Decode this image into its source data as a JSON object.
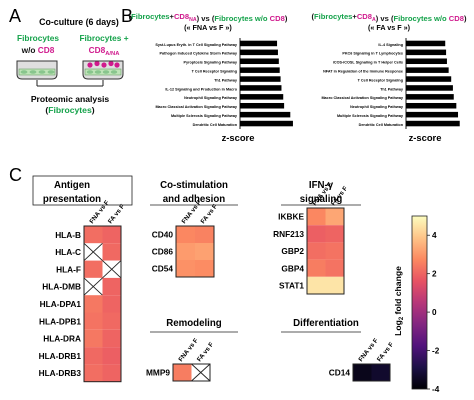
{
  "panels": {
    "a": {
      "label": "A",
      "title": "Co-culture (6 days)",
      "left_line1": "Fibrocytes",
      "left_line2_prefix": "w/o ",
      "left_line2_accent": "CD8",
      "right_line1": "Fibrocytes +",
      "right_line2_main": "CD8",
      "right_line2_sub": "A/NA",
      "analysis_line1": "Proteomic analysis",
      "analysis_line2_prefix": "(",
      "analysis_line2_accent": "Fibrocytes",
      "analysis_line2_suffix": ")"
    },
    "b": {
      "label": "B"
    },
    "c": {
      "label": "C"
    }
  },
  "colors": {
    "green": "#14a24a",
    "magenta": "#d01a8d",
    "bar": "#000000",
    "na": "#ffffff",
    "grid": "#222222",
    "pink_cell": "#f7c2dd",
    "green_dish": "#bfe4b8"
  },
  "chart_data": [
    {
      "type": "bar",
      "orientation": "horizontal",
      "title_parts": [
        {
          "text": "(",
          "color": "#111111"
        },
        {
          "text": "Fibrocytes",
          "color": "#14a24a"
        },
        {
          "text": "+",
          "color": "#111111"
        },
        {
          "text": "CD8",
          "color": "#d01a8d"
        },
        {
          "text": "NA",
          "color": "#d01a8d",
          "sub": true
        },
        {
          "text": ") vs (",
          "color": "#111111"
        },
        {
          "text": "Fibrocytes w/o ",
          "color": "#14a24a"
        },
        {
          "text": "CD8",
          "color": "#d01a8d"
        },
        {
          "text": ")",
          "color": "#111111"
        }
      ],
      "subtitle": "(« FNA vs F »)",
      "xlabel": "z-score",
      "xlim": [
        0,
        3.4
      ],
      "categories": [
        "Syst.Lupus Eryth. in T Cell Signaling Pathway",
        "Pathogen Induced Cytokine Storm Pathway",
        "Pyroptosis Signaling Pathway",
        "T Cell Receptor Signaling",
        "Th1 Pathway",
        "IL-12 Signaling and Production in Macro",
        "Neutrophil Signaling Pathway",
        "Macro Classical Activation Signaling Pathway",
        "Multiple Sclerosis Signaling Pathway",
        "Dendritic Cell Maturation"
      ],
      "values": [
        2.1,
        2.15,
        2.2,
        2.25,
        2.3,
        2.35,
        2.45,
        2.5,
        2.85,
        3.0
      ]
    },
    {
      "type": "bar",
      "orientation": "horizontal",
      "title_parts": [
        {
          "text": "(",
          "color": "#111111"
        },
        {
          "text": "Fibrocytes",
          "color": "#14a24a"
        },
        {
          "text": "+",
          "color": "#111111"
        },
        {
          "text": "CD8",
          "color": "#d01a8d"
        },
        {
          "text": "A",
          "color": "#d01a8d",
          "sub": true
        },
        {
          "text": ") vs (",
          "color": "#111111"
        },
        {
          "text": "Fibrocytes w/o ",
          "color": "#14a24a"
        },
        {
          "text": "CD8",
          "color": "#d01a8d"
        },
        {
          "text": ")",
          "color": "#111111"
        }
      ],
      "subtitle": "(« FA vs F »)",
      "xlabel": "z-score",
      "xlim": [
        0,
        3.4
      ],
      "categories": [
        "IL-4 Signaling",
        "PKCθ Signaling in T Lymphocytes",
        "iCOS-iCOSL Signaling in T Helper Cells",
        "NFAT in Regulation of the Immune Response",
        "T Cell Receptor Signaling",
        "Th1 Pathway",
        "Macro Classical Activation Signaling Pathway",
        "Neutrophil Signaling Pathway",
        "Multiple Sclerosis Signaling Pathway",
        "Dendritic Cell Maturation"
      ],
      "values": [
        2.3,
        2.35,
        2.4,
        2.5,
        2.65,
        2.75,
        2.8,
        2.95,
        3.05,
        3.15
      ]
    },
    {
      "type": "heatmap",
      "columns": [
        "FNA vs F",
        "FA vs F"
      ],
      "colorbar": {
        "label": "Log",
        "label_sub": "2",
        "label_rest": " fold change",
        "range": [
          -4,
          5
        ],
        "ticks": [
          4,
          2,
          0,
          -2,
          -4
        ],
        "stops": [
          {
            "v": -4,
            "color": "#000004"
          },
          {
            "v": -2.875,
            "color": "#1c1046"
          },
          {
            "v": -1.75,
            "color": "#51127c"
          },
          {
            "v": -0.625,
            "color": "#832681"
          },
          {
            "v": 0.5,
            "color": "#b73779"
          },
          {
            "v": 1.625,
            "color": "#e75263"
          },
          {
            "v": 2.75,
            "color": "#fc8961"
          },
          {
            "v": 3.875,
            "color": "#fec488"
          },
          {
            "v": 5,
            "color": "#fcfdbf"
          }
        ]
      },
      "groups": [
        {
          "id": "antigen",
          "title_lines": [
            "Antigen",
            "presentation"
          ],
          "rows": [
            "HLA-B",
            "HLA-C",
            "HLA-F",
            "HLA-DMB",
            "HLA-DPA1",
            "HLA-DPB1",
            "HLA-DRA",
            "HLA-DRB1",
            "HLA-DRB3"
          ],
          "values": [
            [
              2.2,
              2.0
            ],
            [
              null,
              2.1
            ],
            [
              2.2,
              null
            ],
            [
              null,
              2.0
            ],
            [
              2.4,
              2.0
            ],
            [
              2.3,
              2.1
            ],
            [
              2.4,
              2.0
            ],
            [
              2.1,
              1.9
            ],
            [
              2.2,
              2.0
            ]
          ]
        },
        {
          "id": "costim",
          "title_lines": [
            "Co-stimulation",
            "and adhesion"
          ],
          "rows": [
            "CD40",
            "CD86",
            "CD54"
          ],
          "values": [
            [
              2.7,
              2.6
            ],
            [
              3.1,
              3.2
            ],
            [
              2.9,
              2.8
            ]
          ]
        },
        {
          "id": "ifn",
          "title_lines": [
            "IFN-γ",
            "signaling"
          ],
          "rows": [
            "IKBKE",
            "RNF213",
            "GBP2",
            "GBP4",
            "STAT1"
          ],
          "values": [
            [
              2.7,
              3.3
            ],
            [
              1.9,
              2.0
            ],
            [
              2.2,
              2.3
            ],
            [
              2.5,
              2.3
            ],
            [
              4.5,
              4.5
            ]
          ]
        },
        {
          "id": "remodeling",
          "title_lines": [
            "Remodeling"
          ],
          "rows": [
            "MMP9"
          ],
          "values": [
            [
              2.5,
              null
            ]
          ]
        },
        {
          "id": "diff",
          "title_lines": [
            "Differentiation"
          ],
          "rows": [
            "CD14"
          ],
          "values": [
            [
              -3.6,
              -3.3
            ]
          ]
        }
      ]
    }
  ]
}
